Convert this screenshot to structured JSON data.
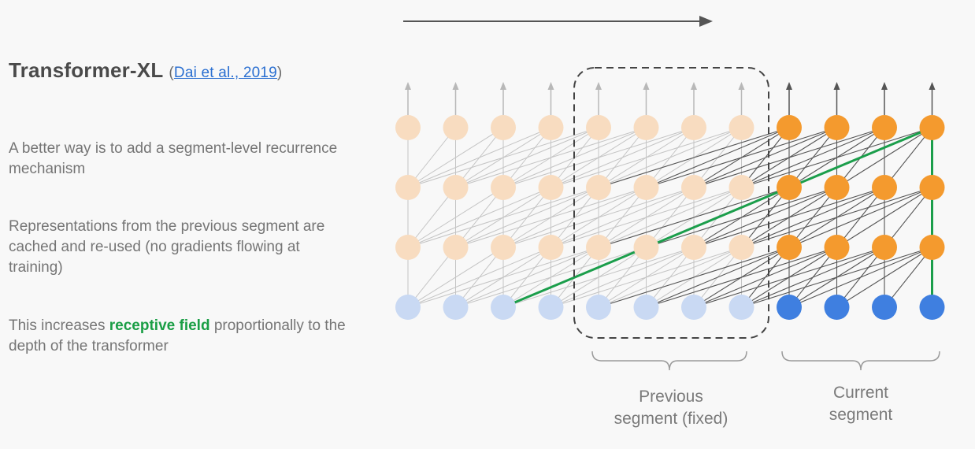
{
  "slide": {
    "title": "Transformer-XL",
    "citation_open": "(",
    "citation_link": "Dai et al., 2019",
    "citation_close": ")",
    "para1": "A better way is to add a segment-level recurrence mechanism",
    "para2": "Representations from the previous segment are cached and re-used (no gradients flowing at training)",
    "para3_before": "This increases ",
    "para3_highlight": "receptive field",
    "para3_after": " proportionally to the depth of the transformer"
  },
  "diagram": {
    "previous_label_line1": "Previous",
    "previous_label_line2": "segment (fixed)",
    "current_label_line1": "Current",
    "current_label_line2": "segment",
    "columns_prev": 8,
    "columns_current": 4,
    "layers": 4,
    "colors": {
      "input_prev": "#c9d9f3",
      "input_current": "#3f7fe0",
      "hidden_prev": "#f8dcc0",
      "hidden_current": "#f49a2e",
      "edge_prev": "#c4c4c4",
      "edge_current": "#555555",
      "highlight_path": "#1b9e4b",
      "arrow_prev": "#b8b8b8",
      "arrow_current": "#555555",
      "dashed_box": "#444444",
      "brace": "#9a9a9a"
    }
  }
}
